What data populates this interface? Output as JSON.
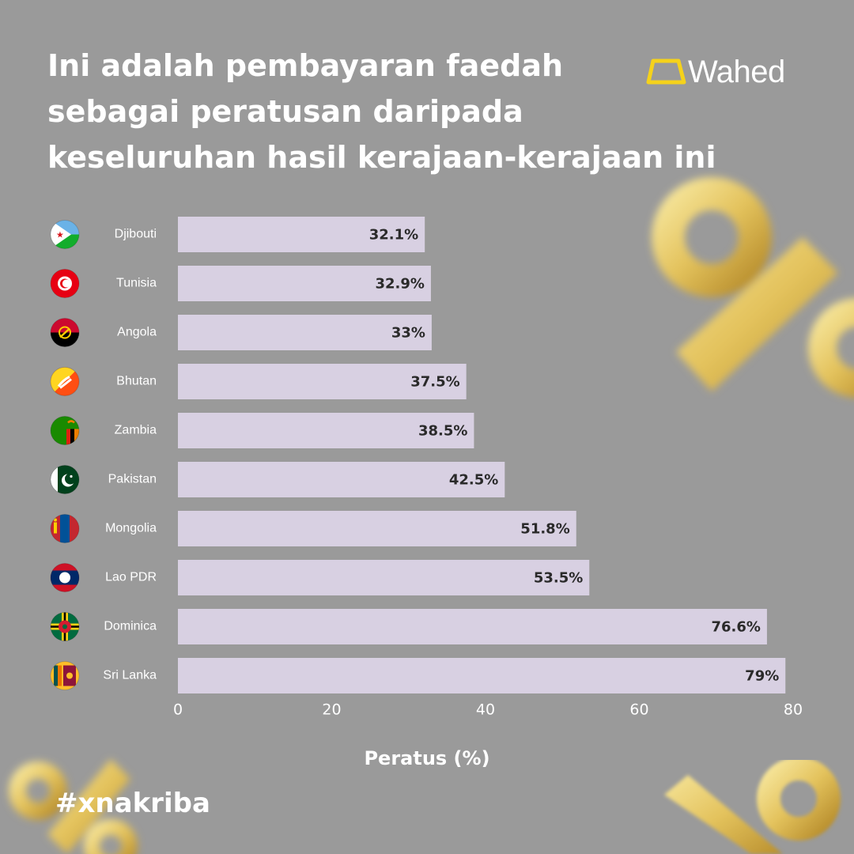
{
  "brand": {
    "name": "Wahed",
    "accent_color": "#f5d21b",
    "icon": "wahed-logo-icon"
  },
  "title_lines": [
    "Ini adalah pembayaran faedah",
    "sebagai peratusan daripada",
    "keseluruhan hasil kerajaan-kerajaan ini"
  ],
  "hashtag": "#xnakriba",
  "colors": {
    "background": "#9a9a9a",
    "bar": "#d8d0e2",
    "label_text": "#2a2a2a",
    "text": "#ffffff"
  },
  "chart_data": {
    "type": "bar",
    "orientation": "horizontal",
    "xlabel": "Peratus (%)",
    "ylabel": "",
    "xlim": [
      0,
      80
    ],
    "xticks": [
      0,
      20,
      40,
      60,
      80
    ],
    "grid": false,
    "categories": [
      "Djibouti",
      "Tunisia",
      "Angola",
      "Bhutan",
      "Zambia",
      "Pakistan",
      "Mongolia",
      "Lao PDR",
      "Dominica",
      "Sri Lanka"
    ],
    "values": [
      32.1,
      32.9,
      33,
      37.5,
      38.5,
      42.5,
      51.8,
      53.5,
      76.6,
      79
    ],
    "value_labels": [
      "32.1%",
      "32.9%",
      "33%",
      "37.5%",
      "38.5%",
      "42.5%",
      "51.8%",
      "53.5%",
      "76.6%",
      "79%"
    ],
    "flag_icons": [
      "djibouti-flag-icon",
      "tunisia-flag-icon",
      "angola-flag-icon",
      "bhutan-flag-icon",
      "zambia-flag-icon",
      "pakistan-flag-icon",
      "mongolia-flag-icon",
      "laos-flag-icon",
      "dominica-flag-icon",
      "sri-lanka-flag-icon"
    ]
  }
}
